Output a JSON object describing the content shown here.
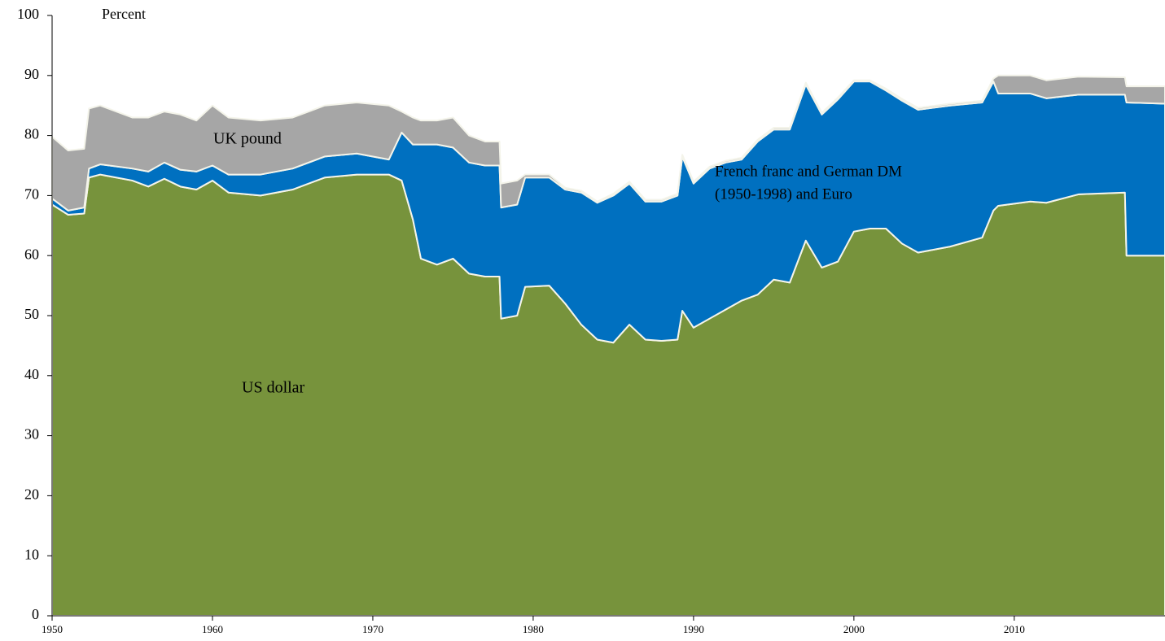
{
  "chart_data": {
    "type": "stacked_area",
    "y_label": "Percent",
    "annotations": {
      "uk": "UK pound",
      "euro": [
        "French franc and German DM",
        "(1950-1998) and Euro"
      ],
      "usd": "US dollar"
    },
    "x": [
      1950,
      1951,
      1952,
      1952.3,
      1953,
      1955,
      1956,
      1957,
      1958,
      1959,
      1960,
      1961,
      1963,
      1965,
      1967,
      1969,
      1971,
      1971.8,
      1972.5,
      1973,
      1974,
      1975,
      1976,
      1977,
      1977.9,
      1978,
      1979,
      1979.5,
      1981,
      1982,
      1983,
      1984,
      1985,
      1986,
      1987,
      1988,
      1989,
      1989.3,
      1990,
      1991,
      1992,
      1993,
      1994,
      1995,
      1996,
      1997,
      1998,
      1999,
      2000,
      2001,
      2002,
      2003,
      2004,
      2006,
      2008,
      2008.7,
      2009,
      2011,
      2012,
      2014,
      2016.9,
      2017,
      2019.4
    ],
    "series": [
      {
        "name": "US dollar",
        "color": "#77933c",
        "values": [
          68.5,
          66.8,
          67.0,
          73.0,
          73.5,
          72.5,
          71.5,
          72.8,
          71.5,
          71.0,
          72.5,
          70.5,
          70.0,
          71.0,
          73.0,
          73.5,
          73.5,
          72.5,
          66,
          59.5,
          58.5,
          59.5,
          57.0,
          56.5,
          56.5,
          49.5,
          50,
          54.8,
          55,
          52,
          48.5,
          46,
          45.5,
          48.5,
          46,
          45.8,
          46,
          50.8,
          48,
          49.5,
          51,
          52.5,
          53.5,
          56,
          55.5,
          62.5,
          58,
          59,
          64,
          64.5,
          64.5,
          62,
          60.5,
          61.5,
          63,
          67.5,
          68.3,
          69,
          68.8,
          70.2,
          70.5,
          60,
          60
        ]
      },
      {
        "name": "French franc and German DM (1950-1998) and Euro",
        "color": "#0070c0",
        "values": [
          1.0,
          0.7,
          1.0,
          1.5,
          1.7,
          2.0,
          2.5,
          2.7,
          2.8,
          3.0,
          2.5,
          3.0,
          3.5,
          3.5,
          3.5,
          3.5,
          2.5,
          8.0,
          12.5,
          19.0,
          20.0,
          18.5,
          18.5,
          18.5,
          18.5,
          18.5,
          18.5,
          18.2,
          18,
          19,
          22,
          22.8,
          24.5,
          23.5,
          23,
          23.2,
          24,
          25.7,
          24,
          25,
          24.5,
          23.5,
          25.5,
          25,
          25.5,
          26,
          25.5,
          27,
          25,
          24.5,
          23,
          23.8,
          23.8,
          23.5,
          22.5,
          21.5,
          18.7,
          18,
          17.4,
          16.6,
          16.3,
          25.5,
          25.3
        ]
      },
      {
        "name": "UK pound",
        "color": "#a6a6a6",
        "values": [
          10.3,
          10.0,
          9.8,
          10.0,
          9.8,
          8.5,
          9.0,
          8.5,
          9.2,
          8.5,
          10.0,
          9.5,
          9.0,
          8.5,
          8.5,
          8.5,
          9.0,
          3.5,
          4.5,
          4.0,
          4.0,
          5.0,
          4.5,
          4.0,
          4.0,
          4.0,
          4.0,
          0.5,
          0.5,
          0.3,
          0.3,
          0.2,
          0.3,
          0.3,
          0.3,
          0.3,
          0.3,
          0.3,
          0.3,
          0.3,
          0.3,
          0.3,
          0.3,
          0.3,
          0.3,
          0.3,
          0.3,
          0.3,
          0.2,
          0.2,
          0.3,
          0.3,
          0.3,
          0.3,
          0.3,
          0.5,
          3.0,
          3.0,
          3.0,
          3.0,
          2.9,
          2.7,
          2.9
        ]
      }
    ],
    "xlim": [
      1950,
      2019.4
    ],
    "xticks": [
      1950,
      1960,
      1970,
      1980,
      1990,
      2000,
      2010
    ],
    "ylim": [
      0,
      100
    ],
    "yticks": [
      0,
      10,
      20,
      30,
      40,
      50,
      60,
      70,
      80,
      90,
      100
    ],
    "grid": false
  }
}
